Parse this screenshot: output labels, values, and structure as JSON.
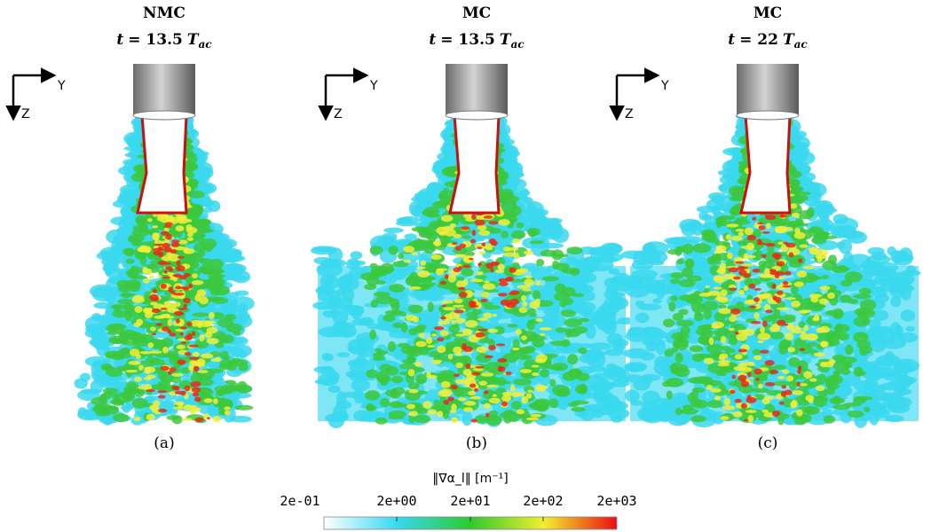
{
  "panels": [
    {
      "title": "NMC",
      "time": {
        "var": "t",
        "eq": "= 13.5",
        "unit": "T",
        "sub": "ac"
      },
      "axis_y": "Y",
      "axis_z": "Z",
      "caption": "(a)"
    },
    {
      "title": "MC",
      "time": {
        "var": "t",
        "eq": "= 13.5",
        "unit": "T",
        "sub": "ac"
      },
      "axis_y": "Y",
      "axis_z": "Z",
      "caption": "(b)"
    },
    {
      "title": "MC",
      "time": {
        "var": "t",
        "eq": "= 22",
        "unit": "T",
        "sub": "ac"
      },
      "axis_y": "Y",
      "axis_z": "Z",
      "caption": "(c)"
    }
  ],
  "colorbar": {
    "label": "‖∇α_l‖ [m⁻¹]",
    "ticks": [
      "2e-01",
      "2e+00",
      "2e+01",
      "2e+02",
      "2e+03"
    ]
  }
}
